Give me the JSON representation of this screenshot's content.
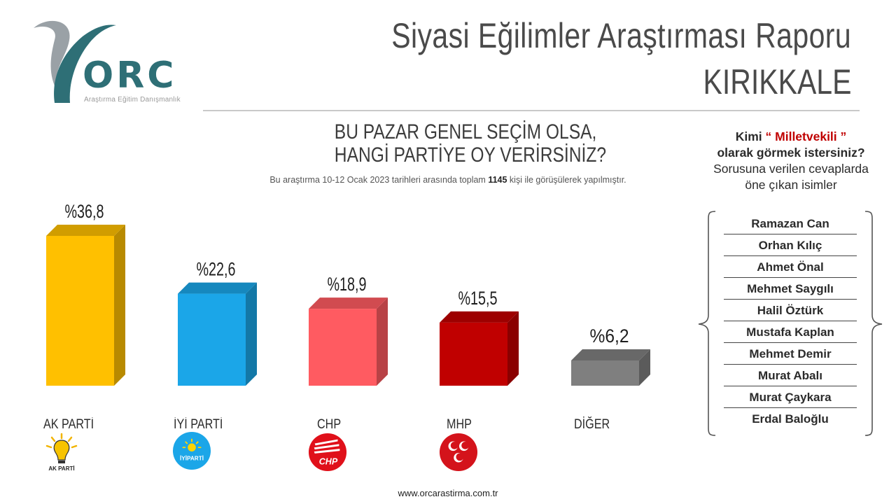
{
  "brand": {
    "wordmark": "ORC",
    "tagline": "Araştırma Eğitim Danışmanlık",
    "accent_color": "#2e6f76"
  },
  "header": {
    "title": "Siyasi Eğilimler Araştırması Raporu",
    "city": "KIRIKKALE"
  },
  "question": {
    "line1": "BU PAZAR GENEL SEÇİM OLSA,",
    "line2": "HANGİ PARTİYE OY VERİRSİNİZ?",
    "note_before": "Bu araştırma 10-12 Ocak 2023 tarihleri arasında toplam ",
    "note_count": "1145",
    "note_after": " kişi ile görüşülerek yapılmıştır."
  },
  "chart_data": {
    "type": "bar",
    "categories": [
      "AK PARTİ",
      "İYİ PARTİ",
      "CHP",
      "MHP",
      "DİĞER"
    ],
    "values": [
      36.8,
      22.6,
      18.9,
      15.5,
      6.2
    ],
    "value_labels": [
      "%36,8",
      "%22,6",
      "%18,9",
      "%15,5",
      "%6,2"
    ],
    "colors": [
      "#ffc000",
      "#1ba6e8",
      "#ff5b61",
      "#c00000",
      "#7f7f7f"
    ],
    "title": "",
    "xlabel": "",
    "ylabel": "",
    "ylim": [
      0,
      36.8
    ],
    "grid": false,
    "style": "3d-bar"
  },
  "party_logos": [
    {
      "icon": "ak-parti-bulb-icon",
      "text": "AK PARTİ"
    },
    {
      "icon": "iyi-parti-sun-icon",
      "text": "İYİPARTİ"
    },
    {
      "icon": "chp-six-arrows-icon",
      "text": "CHP"
    },
    {
      "icon": "mhp-three-crescents-icon",
      "text": ""
    },
    {
      "icon": "",
      "text": ""
    }
  ],
  "mv_panel": {
    "q_kimi": "Kimi",
    "q_mv": "“ Milletvekili ”",
    "q_line2": "olarak görmek istersiniz?",
    "q_line3": "Sorusuna verilen cevaplarda",
    "q_line4": "öne çıkan isimler",
    "names": [
      "Ramazan Can",
      "Orhan Kılıç",
      "Ahmet Önal",
      "Mehmet Saygılı",
      "Halil Öztürk",
      "Mustafa Kaplan",
      "Mehmet Demir",
      "Murat Abalı",
      "Murat Çaykara",
      "Erdal Baloğlu"
    ]
  },
  "footer": {
    "url": "www.orcarastirma.com.tr"
  }
}
